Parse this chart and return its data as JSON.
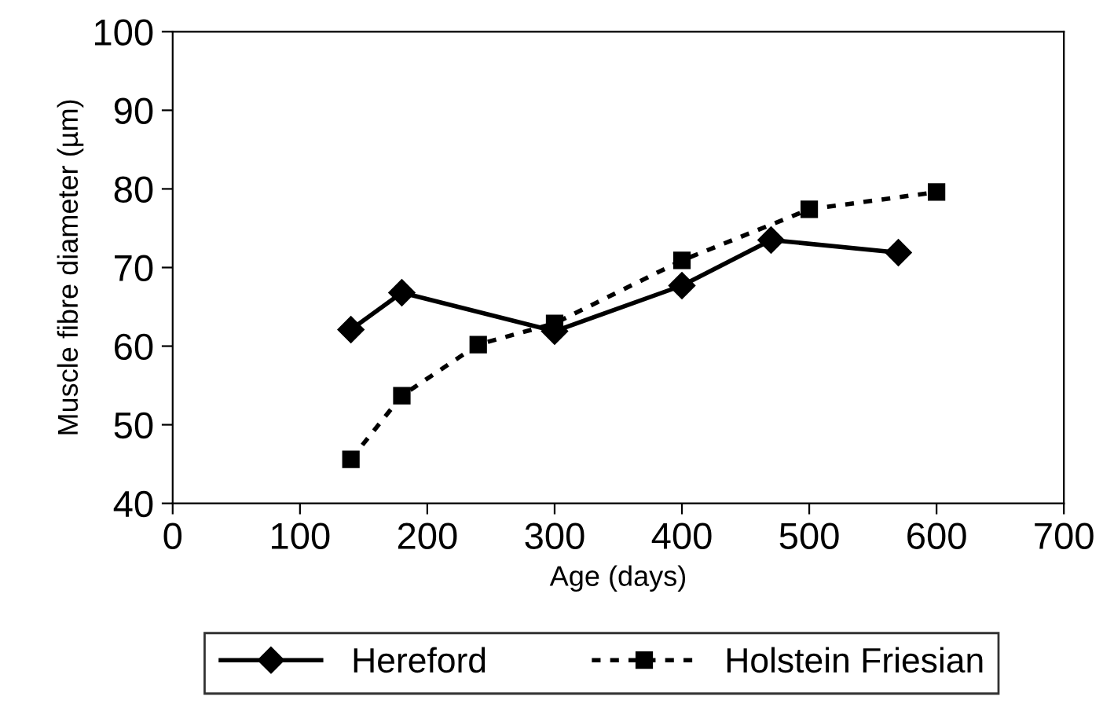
{
  "chart_data": {
    "type": "line",
    "xlabel": "Age (days)",
    "ylabel": "Muscle fibre diameter (µm)",
    "xlim": [
      0,
      700
    ],
    "xticks": [
      0,
      100,
      200,
      300,
      400,
      500,
      600,
      700
    ],
    "ylim": [
      40,
      100
    ],
    "yticks": [
      40,
      50,
      60,
      70,
      80,
      90,
      100
    ],
    "grid": false,
    "legend": "bottom",
    "series": [
      {
        "name": "Hereford",
        "color": "#000000",
        "marker": "diamond",
        "line_style": "solid",
        "x": [
          140,
          180,
          300,
          400,
          470,
          570
        ],
        "values": [
          62.1,
          66.8,
          61.9,
          67.7,
          73.5,
          71.9
        ]
      },
      {
        "name": "Holstein Friesian",
        "color": "#000000",
        "marker": "square",
        "line_style": "dotted",
        "x": [
          140,
          180,
          240,
          300,
          400,
          500,
          600
        ],
        "values": [
          45.6,
          53.7,
          60.2,
          62.9,
          70.9,
          77.4,
          79.6
        ]
      }
    ]
  }
}
